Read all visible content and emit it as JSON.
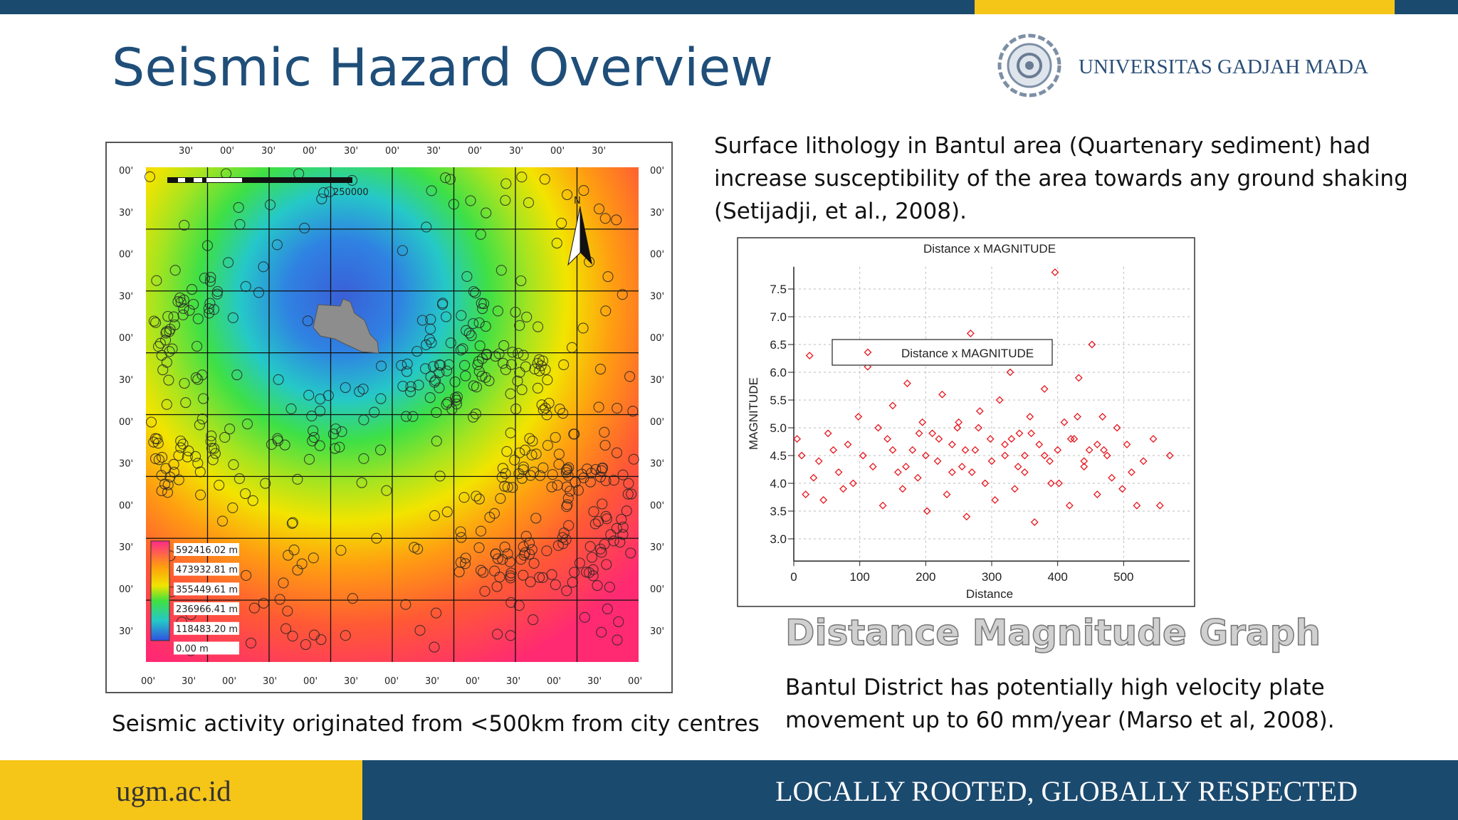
{
  "header": {
    "title": "Seismic Hazard Overview",
    "logo_text": "UNIVERSITAS GADJAH MADA"
  },
  "map": {
    "top_labels": [
      "30'",
      "00'",
      "30'",
      "00'",
      "30'",
      "00'",
      "30'",
      "00'",
      "30'",
      "00'",
      "30'"
    ],
    "bottom_labels": [
      "00'",
      "30'",
      "00'",
      "30'",
      "00'",
      "30'",
      "00'",
      "30'",
      "00'",
      "30'",
      "00'",
      "30'",
      "00'"
    ],
    "left_labels": [
      "00'",
      "30'",
      "00'",
      "30'",
      "00'",
      "30'",
      "00'",
      "30'",
      "00'",
      "30'",
      "00'",
      "30'"
    ],
    "right_labels": [
      "00'",
      "30'",
      "00'",
      "30'",
      "00'",
      "30'",
      "00'",
      "30'",
      "00'",
      "30'",
      "00'",
      "30'"
    ],
    "scale_label": "250000",
    "north_label": "N",
    "legend_labels": [
      "592416.02 m",
      "473932.81 m",
      "355449.61 m",
      "236966.41 m",
      "118483.20 m",
      "0.00 m"
    ],
    "caption": "Seismic activity originated from <500km from city centres"
  },
  "text": {
    "lithology": [
      "Surface lithology in Bantul area (Quartenary sediment) had",
      "increase susceptibility of the area towards any ground shaking",
      "(Setijadji, et al., 2008)."
    ],
    "graph_heading": "Distance Magnitude Graph",
    "velocity": [
      "Bantul District has potentially high velocity plate",
      "movement up to 60 mm/year (Marso et al, 2008)."
    ]
  },
  "chart_data": {
    "type": "scatter",
    "title": "Distance x MAGNITUDE",
    "x_label": "Distance",
    "y_label": "MAGNITUDE",
    "series": [
      {
        "name": "Distance x MAGNITUDE",
        "color": "#e8141c",
        "x": [
          5,
          12,
          18,
          24,
          30,
          38,
          45,
          52,
          60,
          68,
          75,
          82,
          90,
          98,
          105,
          112,
          120,
          128,
          135,
          142,
          150,
          158,
          165,
          172,
          180,
          188,
          195,
          202,
          210,
          218,
          225,
          232,
          240,
          248,
          255,
          262,
          268,
          275,
          282,
          290,
          298,
          305,
          312,
          320,
          328,
          335,
          342,
          350,
          358,
          365,
          372,
          380,
          388,
          396,
          402,
          410,
          418,
          425,
          432,
          440,
          448,
          452,
          460,
          468,
          475,
          482,
          490,
          498,
          505,
          512,
          520,
          530,
          545,
          555,
          570,
          200,
          220,
          240,
          260,
          280,
          300,
          320,
          340,
          360,
          380,
          400,
          420,
          440,
          460,
          150,
          170,
          190,
          250,
          270,
          330,
          350,
          390,
          430,
          470
        ],
        "values": [
          4.8,
          4.5,
          3.8,
          6.3,
          4.1,
          4.4,
          3.7,
          4.9,
          4.6,
          4.2,
          3.9,
          4.7,
          4.0,
          5.2,
          4.5,
          6.1,
          4.3,
          5.0,
          3.6,
          4.8,
          5.4,
          4.2,
          3.9,
          5.8,
          4.6,
          4.1,
          5.1,
          3.5,
          4.9,
          4.4,
          5.6,
          3.8,
          4.7,
          5.0,
          4.3,
          3.4,
          6.7,
          4.6,
          5.3,
          4.0,
          4.8,
          3.7,
          5.5,
          4.5,
          6.0,
          3.9,
          4.9,
          4.2,
          5.2,
          3.3,
          4.7,
          5.7,
          4.4,
          7.8,
          4.0,
          5.1,
          3.6,
          4.8,
          5.9,
          4.3,
          4.6,
          6.5,
          3.8,
          5.2,
          4.5,
          4.1,
          5.0,
          3.9,
          4.7,
          4.2,
          3.6,
          4.4,
          4.8,
          3.6,
          4.5,
          4.5,
          4.8,
          4.2,
          4.6,
          5.0,
          4.4,
          4.7,
          4.3,
          4.9,
          4.5,
          4.6,
          4.8,
          4.4,
          4.7,
          4.6,
          4.3,
          4.9,
          5.1,
          4.2,
          4.8,
          4.5,
          4.0,
          5.2,
          4.6
        ]
      }
    ],
    "xlim": [
      0,
      600
    ],
    "ylim": [
      2.6,
      7.9
    ],
    "xticks": [
      0,
      100,
      200,
      300,
      400,
      500
    ],
    "yticks": [
      {
        "value": 3,
        "label": "3.0"
      },
      {
        "value": 3.5,
        "label": "3.5"
      },
      {
        "value": 4,
        "label": "4.0"
      },
      {
        "value": 4.5,
        "label": "4.5"
      },
      {
        "value": 5,
        "label": "5.0"
      },
      {
        "value": 5.5,
        "label": "5.5"
      },
      {
        "value": 6,
        "label": "6.0"
      },
      {
        "value": 6.5,
        "label": "6.5"
      },
      {
        "value": 7,
        "label": "7.0"
      },
      {
        "value": 7.5,
        "label": "7.5"
      }
    ],
    "grid": true,
    "legend": "top"
  },
  "footer": {
    "url": "ugm.ac.id",
    "motto": "LOCALLY ROOTED, GLOBALLY RESPECTED"
  }
}
